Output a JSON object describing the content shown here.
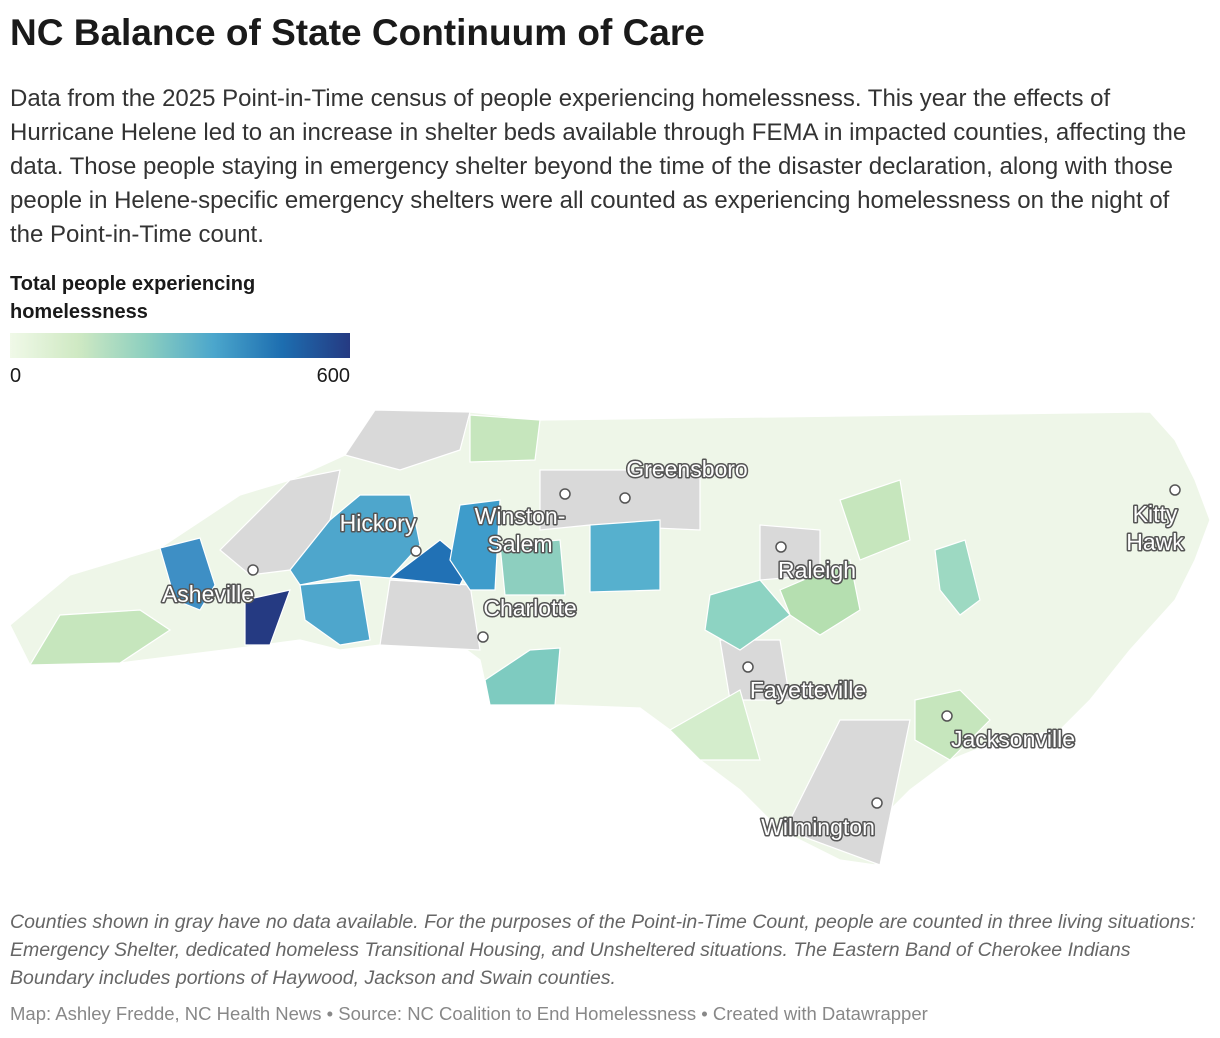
{
  "header": {
    "title": "NC Balance of State Continuum of Care",
    "description": "Data from the 2025 Point-in-Time census of people experiencing homelessness. This year the effects of Hurricane Helene led to an increase in shelter beds available through FEMA in impacted counties, affecting the data. Those people staying in emergency shelter beyond the time of the disaster declaration, along with those people in Helene-specific emergency shelters were all counted as experiencing homelessness on the night of the Point-in-Time count."
  },
  "legend": {
    "title": "Total people experiencing homelessness",
    "ticks": [
      0,
      600
    ]
  },
  "cities": [
    {
      "lines": [
        "Greensboro"
      ]
    },
    {
      "lines": [
        "Winston-",
        "Salem"
      ]
    },
    {
      "lines": [
        "Hickory"
      ]
    },
    {
      "lines": [
        "Asheville"
      ]
    },
    {
      "lines": [
        "Charlotte"
      ]
    },
    {
      "lines": [
        "Raleigh"
      ]
    },
    {
      "lines": [
        "Fayetteville"
      ]
    },
    {
      "lines": [
        "Jacksonville"
      ]
    },
    {
      "lines": [
        "Wilmington"
      ]
    },
    {
      "lines": [
        "Kitty",
        "Hawk"
      ]
    }
  ],
  "footer": {
    "note": "Counties shown in gray have no data available. For the purposes of the Point-in-Time Count, people are counted in three living situations: Emergency Shelter, dedicated homeless Transitional Housing, and Unsheltered situations. The Eastern Band of Cherokee Indians Boundary includes portions of Haywood, Jackson and Swain counties.",
    "credits": "Map: Ashley Fredde, NC Health News • Source: NC Coalition to End Homelessness • Created with Datawrapper"
  }
}
